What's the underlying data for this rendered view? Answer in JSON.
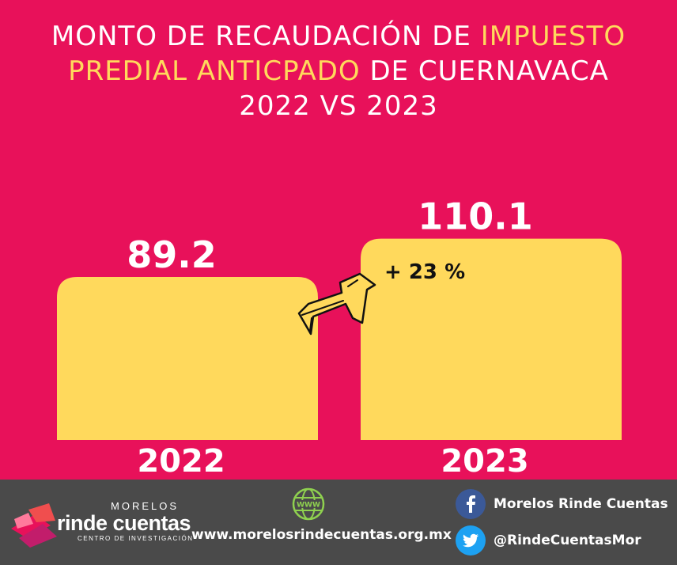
{
  "title": {
    "line1_a": "MONTO  DE RECAUDACIÓN DE ",
    "line1_b": "IMPUESTO",
    "line2_a": "PREDIAL ANTICPADO",
    "line2_b": " DE CUERNAVACA",
    "line3": "2022 VS 2023"
  },
  "colors": {
    "background": "#e8115a",
    "bar": "#ffd95c",
    "highlight": "#ffd95c",
    "footer": "#4a4a4a"
  },
  "chart_data": {
    "type": "bar",
    "categories": [
      "2022",
      "2023"
    ],
    "values": [
      89.2,
      110.1
    ],
    "value_labels": [
      "89.2",
      "110.1"
    ],
    "annotation": "+ 23 %",
    "title": "MONTO  DE RECAUDACIÓN DE IMPUESTO PREDIAL ANTICPADO DE CUERNAVACA 2022 VS 2023",
    "grid": false
  },
  "footer": {
    "logo_top": "MORELOS",
    "logo_main": "rinde cuentas",
    "logo_sub": "CENTRO DE INVESTIGACIÓN",
    "website": "www.morelosrindecuentas.org.mx",
    "website_icon": "globe-www-icon",
    "facebook": "Morelos Rinde Cuentas",
    "facebook_icon": "facebook-icon",
    "twitter": "@RindeCuentasMor",
    "twitter_icon": "twitter-icon"
  }
}
